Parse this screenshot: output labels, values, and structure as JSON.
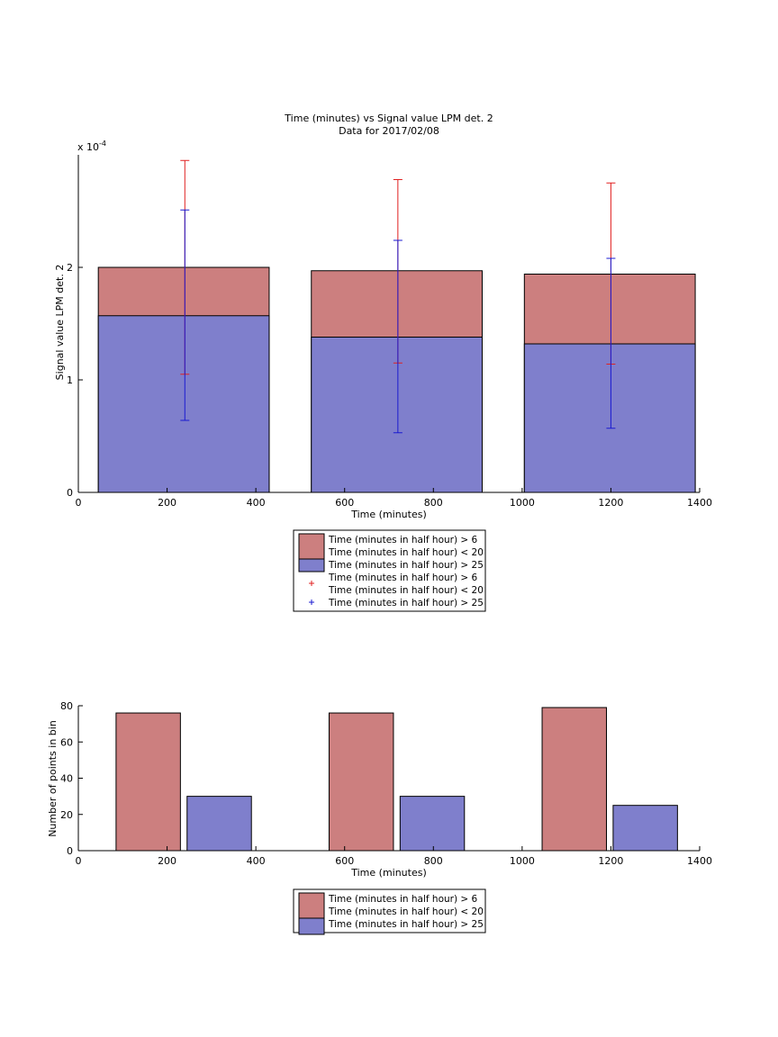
{
  "figure": {
    "title": "Time (minutes) vs Signal value LPM det. 2",
    "subtitle": "Data for 2017/02/08"
  },
  "colors": {
    "red_fill": "#cc7f7f",
    "blue_fill": "#7f7fcc",
    "red_err": "#e02020",
    "blue_err": "#1a1ad0"
  },
  "legend_top": {
    "entries": [
      {
        "kind": "patch",
        "color": "#cc7f7f",
        "lines": [
          "Time (minutes in half hour) > 6",
          "Time (minutes in half hour) < 20"
        ]
      },
      {
        "kind": "patch",
        "color": "#7f7fcc",
        "lines": [
          "Time (minutes in half hour) > 25"
        ]
      },
      {
        "kind": "marker",
        "color": "#e02020",
        "lines": [
          "Time (minutes in half hour) > 6",
          "Time (minutes in half hour) < 20"
        ]
      },
      {
        "kind": "marker",
        "color": "#1a1ad0",
        "lines": [
          "Time (minutes in half hour) > 25"
        ]
      }
    ]
  },
  "legend_bottom": {
    "entries": [
      {
        "kind": "patch",
        "color": "#cc7f7f",
        "lines": [
          "Time (minutes in half hour) > 6",
          "Time (minutes in half hour) < 20"
        ]
      },
      {
        "kind": "patch",
        "color": "#7f7fcc",
        "lines": [
          "Time (minutes in half hour) > 25"
        ]
      }
    ]
  },
  "chart_data": [
    {
      "type": "bar",
      "title": "Time (minutes) vs Signal value LPM det. 2",
      "subtitle": "Data for 2017/02/08",
      "xlabel": "Time (minutes)",
      "ylabel": "Signal value LPM det. 2",
      "y_exponent_label": "x 10",
      "y_exponent": "-4",
      "xlim": [
        0,
        1400
      ],
      "ylim": [
        0,
        3.0
      ],
      "y_scale_factor": 0.0001,
      "xticks": [
        0,
        200,
        400,
        600,
        800,
        1000,
        1200,
        1400
      ],
      "yticks": [
        0,
        1,
        2
      ],
      "grid": false,
      "overlapping_bars": true,
      "bins": [
        {
          "x_start": 45,
          "x_end": 430,
          "x_center": 240
        },
        {
          "x_start": 525,
          "x_end": 910,
          "x_center": 720
        },
        {
          "x_start": 1005,
          "x_end": 1390,
          "x_center": 1200
        }
      ],
      "series": [
        {
          "name": "Time (minutes in half hour) > 6 Time (minutes in half hour) < 20",
          "color": "#cc7f7f",
          "values": [
            2.0,
            1.97,
            1.94
          ],
          "errors": {
            "color": "#e02020",
            "lower": [
              1.05,
              1.15,
              1.14
            ],
            "upper": [
              2.95,
              2.78,
              2.75
            ]
          }
        },
        {
          "name": "Time (minutes in half hour) > 25",
          "color": "#7f7fcc",
          "values": [
            1.57,
            1.38,
            1.32
          ],
          "errors": {
            "color": "#1a1ad0",
            "lower": [
              0.64,
              0.53,
              0.57
            ],
            "upper": [
              2.51,
              2.24,
              2.08
            ]
          }
        }
      ]
    },
    {
      "type": "bar",
      "xlabel": "Time (minutes)",
      "ylabel": "Number of points in bin",
      "xlim": [
        0,
        1400
      ],
      "ylim": [
        0,
        80
      ],
      "xticks": [
        0,
        200,
        400,
        600,
        800,
        1000,
        1200,
        1400
      ],
      "yticks": [
        0,
        20,
        40,
        60,
        80
      ],
      "grid": false,
      "series": [
        {
          "name": "Time (minutes in half hour) > 6 Time (minutes in half hour) < 20",
          "color": "#cc7f7f",
          "bars": [
            {
              "x_start": 85,
              "x_end": 230,
              "value": 76
            },
            {
              "x_start": 565,
              "x_end": 710,
              "value": 76
            },
            {
              "x_start": 1045,
              "x_end": 1190,
              "value": 79
            }
          ]
        },
        {
          "name": "Time (minutes in half hour) > 25",
          "color": "#7f7fcc",
          "bars": [
            {
              "x_start": 245,
              "x_end": 390,
              "value": 30
            },
            {
              "x_start": 725,
              "x_end": 870,
              "value": 30
            },
            {
              "x_start": 1205,
              "x_end": 1350,
              "value": 25
            }
          ]
        }
      ]
    }
  ]
}
